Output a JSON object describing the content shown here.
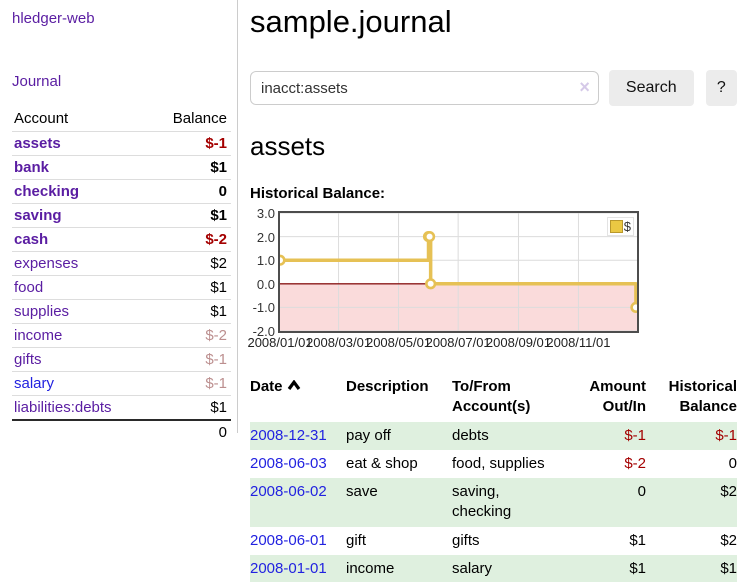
{
  "colors": {
    "purple_link": "#5a1da2",
    "blue_link": "#2222e0",
    "negative": "#a40000",
    "negative_soft": "#bc8f8f",
    "gold": "#e6c155",
    "stripe_green": "#dff0df",
    "negative_area_pink": "#fadbdb",
    "zero_line_red": "#8b1a1a",
    "grid": "#dcdcdc",
    "chart_border": "#4d4d4d"
  },
  "sidebar": {
    "brand": "hledger-web",
    "nav": {
      "journal": "Journal"
    },
    "accounts_header": {
      "account": "Account",
      "balance": "Balance"
    },
    "accounts": [
      {
        "name": "assets",
        "balance": "$-1",
        "indent": 1,
        "bold": true,
        "name_color": "purple",
        "balance_color": "negative"
      },
      {
        "name": "bank",
        "balance": "$1",
        "indent": 2,
        "bold": true,
        "name_color": "purple",
        "balance_color": "normal"
      },
      {
        "name": "checking",
        "balance": "0",
        "indent": 3,
        "bold": true,
        "name_color": "purple",
        "balance_color": "normal"
      },
      {
        "name": "saving",
        "balance": "$1",
        "indent": 3,
        "bold": true,
        "name_color": "purple",
        "balance_color": "normal"
      },
      {
        "name": "cash",
        "balance": "$-2",
        "indent": 2,
        "bold": true,
        "name_color": "purple",
        "balance_color": "negative"
      },
      {
        "name": "expenses",
        "balance": "$2",
        "indent": 1,
        "bold": false,
        "name_color": "purple",
        "balance_color": "normal"
      },
      {
        "name": "food",
        "balance": "$1",
        "indent": 2,
        "bold": false,
        "name_color": "purple",
        "balance_color": "normal"
      },
      {
        "name": "supplies",
        "balance": "$1",
        "indent": 2,
        "bold": false,
        "name_color": "purple",
        "balance_color": "normal"
      },
      {
        "name": "income",
        "balance": "$-2",
        "indent": 1,
        "bold": false,
        "name_color": "purple",
        "balance_color": "negative-soft"
      },
      {
        "name": "gifts",
        "balance": "$-1",
        "indent": 2,
        "bold": false,
        "name_color": "purple",
        "balance_color": "negative-soft"
      },
      {
        "name": "salary",
        "balance": "$-1",
        "indent": 2,
        "bold": false,
        "name_color": "blue",
        "balance_color": "negative-soft"
      },
      {
        "name": "liabilities:debts",
        "balance": "$1",
        "indent": 1,
        "bold": false,
        "name_color": "purple",
        "balance_color": "normal"
      }
    ],
    "total": "0"
  },
  "header": {
    "title": "sample.journal"
  },
  "search": {
    "value": "inacct:assets",
    "clear_icon": "×",
    "button_label": "Search",
    "help_label": "?"
  },
  "main": {
    "account_heading": "assets",
    "chart_heading": "Historical Balance:"
  },
  "chart_data": {
    "type": "line",
    "step": true,
    "title": "Historical Balance:",
    "legend": "$",
    "legend_position": "top-right",
    "grid": true,
    "ylim": [
      -2.0,
      3.0
    ],
    "y_ticks": [
      3.0,
      2.0,
      1.0,
      0.0,
      -1.0,
      -2.0
    ],
    "x_ticks": [
      {
        "label": "2008/01/01",
        "x": 0.0
      },
      {
        "label": "2008/03/01",
        "x": 0.164
      },
      {
        "label": "2008/05/01",
        "x": 0.332
      },
      {
        "label": "2008/07/01",
        "x": 0.499
      },
      {
        "label": "2008/09/01",
        "x": 0.668
      },
      {
        "label": "2008/11/01",
        "x": 0.836
      }
    ],
    "series": [
      {
        "name": "$",
        "color": "#e6c155",
        "points": [
          {
            "date": "2008-01-01",
            "x": 0.0,
            "y": 1
          },
          {
            "date": "2008-06-01",
            "x": 0.416,
            "y": 2
          },
          {
            "date": "2008-06-02",
            "x": 0.419,
            "y": 2
          },
          {
            "date": "2008-06-03",
            "x": 0.422,
            "y": 0
          },
          {
            "date": "2008-12-31",
            "x": 0.997,
            "y": -1
          }
        ]
      }
    ],
    "negative_region_fill": "#fadbdb",
    "zero_line_color": "#8b1a1a"
  },
  "register": {
    "headers": [
      {
        "lines": [
          "Date"
        ],
        "sort": true,
        "align": "left"
      },
      {
        "lines": [
          "Description"
        ],
        "align": "left"
      },
      {
        "lines": [
          "To/From",
          "Account(s)"
        ],
        "align": "left"
      },
      {
        "lines": [
          "Amount",
          "Out/In"
        ],
        "align": "right"
      },
      {
        "lines": [
          "Historical",
          "Balance"
        ],
        "align": "right"
      }
    ],
    "rows": [
      {
        "date": "2008-12-31",
        "description": "pay off",
        "accounts_lines": [
          "debts"
        ],
        "amount": "$-1",
        "amount_negative": true,
        "balance": "$-1",
        "balance_negative": true,
        "shaded": true
      },
      {
        "date": "2008-06-03",
        "description": "eat & shop",
        "accounts_lines": [
          "food, supplies"
        ],
        "amount": "$-2",
        "amount_negative": true,
        "balance": "0",
        "balance_negative": false,
        "shaded": false
      },
      {
        "date": "2008-06-02",
        "description": "save",
        "accounts_lines": [
          "saving,",
          "checking"
        ],
        "amount": "0",
        "amount_negative": false,
        "balance": "$2",
        "balance_negative": false,
        "shaded": true
      },
      {
        "date": "2008-06-01",
        "description": "gift",
        "accounts_lines": [
          "gifts"
        ],
        "amount": "$1",
        "amount_negative": false,
        "balance": "$2",
        "balance_negative": false,
        "shaded": false
      },
      {
        "date": "2008-01-01",
        "description": "income",
        "accounts_lines": [
          "salary"
        ],
        "amount": "$1",
        "amount_negative": false,
        "balance": "$1",
        "balance_negative": false,
        "shaded": true
      }
    ]
  }
}
